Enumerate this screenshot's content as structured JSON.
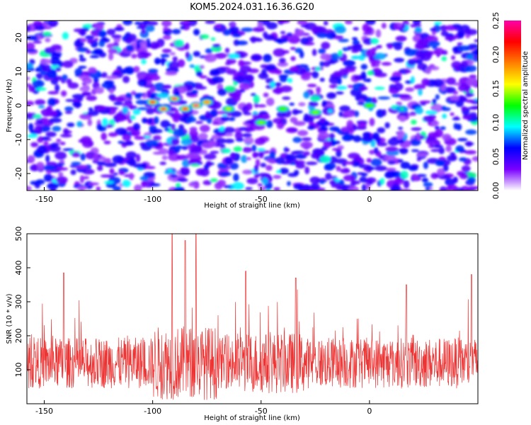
{
  "chart_data": [
    {
      "type": "heatmap",
      "title": "KOM5.2024.031.16.36.G20",
      "xlabel": "Height of straight line (km)",
      "ylabel": "Frequency (Hz)",
      "xlim": [
        -158,
        50
      ],
      "ylim": [
        -25,
        25
      ],
      "x_ticks": [
        -150,
        -100,
        -50,
        0
      ],
      "y_ticks": [
        -20,
        -10,
        0,
        10,
        20
      ],
      "colorbar": {
        "label": "Normalized spectral amplitude",
        "range": [
          0,
          0.25
        ],
        "ticks": [
          "0.00",
          "0.05",
          "0.10",
          "0.15",
          "0.20",
          "0.25"
        ],
        "colors": [
          "#ffffff",
          "#7a00ff",
          "#0000ff",
          "#00ffff",
          "#00ff00",
          "#ffff00",
          "#ff7f00",
          "#ff0000",
          "#ff00aa"
        ]
      },
      "hotspots": [
        {
          "x": -100,
          "y": 1,
          "amplitude": 0.22
        },
        {
          "x": -95,
          "y": -1,
          "amplitude": 0.24
        },
        {
          "x": -90,
          "y": 2,
          "amplitude": 0.25
        },
        {
          "x": -85,
          "y": -1,
          "amplitude": 0.23
        },
        {
          "x": -80,
          "y": 0,
          "amplitude": 0.25
        },
        {
          "x": -75,
          "y": 1,
          "amplitude": 0.18
        },
        {
          "x": -65,
          "y": -1,
          "amplitude": 0.15
        },
        {
          "x": -50,
          "y": -5,
          "amplitude": 0.14
        },
        {
          "x": -40,
          "y": -1,
          "amplitude": 0.13
        },
        {
          "x": -25,
          "y": -2,
          "amplitude": 0.14
        },
        {
          "x": 0,
          "y": 0,
          "amplitude": 0.13
        },
        {
          "x": 15,
          "y": -1,
          "amplitude": 0.12
        }
      ]
    },
    {
      "type": "line",
      "xlabel": "Height of straight line (km)",
      "ylabel": "SNR (10 * v/v)",
      "xlim": [
        -158,
        50
      ],
      "ylim": [
        0,
        500
      ],
      "x_ticks": [
        -150,
        -100,
        -50,
        0
      ],
      "y_ticks": [
        100,
        200,
        300,
        400,
        500
      ],
      "color": "#ee3333",
      "baseline_mean": 120,
      "peaks": [
        {
          "x": -141,
          "y": 385
        },
        {
          "x": -91,
          "y": 500
        },
        {
          "x": -85,
          "y": 480
        },
        {
          "x": -80,
          "y": 500
        },
        {
          "x": -57,
          "y": 390
        },
        {
          "x": -34,
          "y": 370
        },
        {
          "x": 17,
          "y": 350
        },
        {
          "x": 47,
          "y": 380
        }
      ]
    }
  ]
}
